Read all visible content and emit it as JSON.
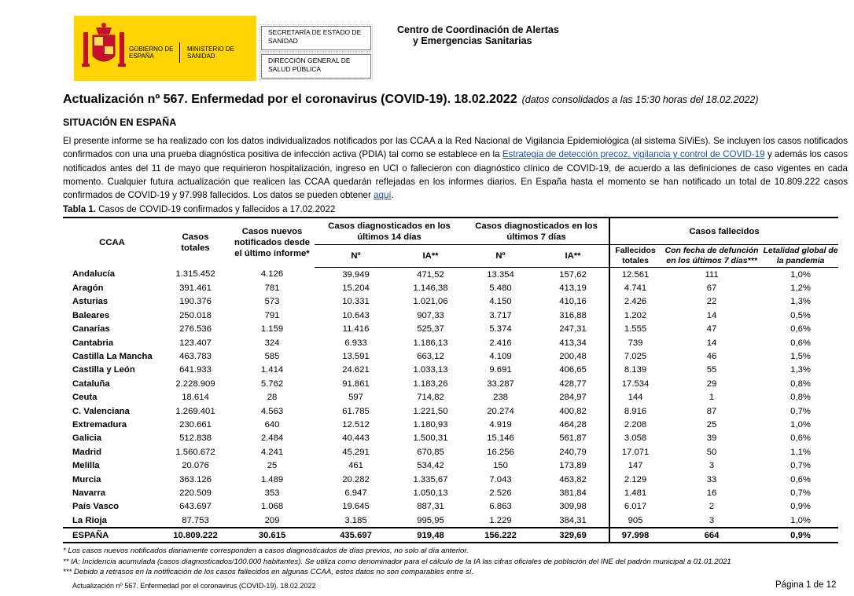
{
  "header": {
    "gobierno": "GOBIERNO DE ESPAÑA",
    "ministerio": "MINISTERIO DE SANIDAD",
    "box1": "SECRETARÍA DE ESTADO DE SANIDAD",
    "box2": "DIRECCIÓN GENERAL DE SALUD PÚBLICA",
    "center": [
      "Centro de Coordinación de Alertas",
      "y Emergencias Sanitarias"
    ]
  },
  "title": "Actualización nº 567. Enfermedad por el coronavirus (COVID-19). 18.02.2022",
  "subtitle": "(datos consolidados a las 15:30 horas del 18.02.2022)",
  "section": "SITUACIÓN EN ESPAÑA",
  "paragraph": {
    "text1": "El presente informe se ha realizado con los datos individualizados notificados por las CCAA a la Red Nacional de Vigilancia Epidemiológica (al sistema SiViEs). Se incluyen los casos notificados confirmados con una una prueba diagnóstica positiva de infección activa (PDIA) tal como se establece en la ",
    "link1": "Estrategia de detección precoz, vigilancia y control de COVID-19",
    "text2": " y además los casos notificados antes del 11 de mayo que requirieron hospitalización, ingreso en UCI o fallecieron con diagnóstico clínico de COVID-19, de acuerdo a las definiciones de caso vigentes en cada momento. Cualquier futura actualización que realicen las CCAA quedarán reflejadas en los informes diarios. En España hasta el momento se han notificado un total de 10.809.222 casos confirmados de COVID-19 y 97.998 fallecidos. Los datos se pueden obtener ",
    "link2": "aquí",
    "text3": "."
  },
  "table": {
    "caption_label": "Tabla 1.",
    "caption": " Casos de COVID-19 confirmados y fallecidos a 17.02.2022",
    "head": {
      "ccaa": "CCAA",
      "totales": "Casos totales",
      "nuevos": "Casos nuevos notificados desde el último informe*",
      "group14": "Casos diagnosticados en los últimos 14 días",
      "group7": "Casos diagnosticados en los últimos 7 días",
      "groupF": "Casos fallecidos",
      "n14": "Nº",
      "ia14": "IA**",
      "n7": "Nº",
      "ia7": "IA**",
      "fall": "Fallecidos totales",
      "fecha": "Con fecha de defunción en los últimos 7 días***",
      "letal": "Letalidad global de la pandemia"
    },
    "rows": [
      [
        "Andalucía",
        "1.315.452",
        "4.126",
        "39.949",
        "471,52",
        "13.354",
        "157,62",
        "12.561",
        "111",
        "1,0%"
      ],
      [
        "Aragón",
        "391.461",
        "781",
        "15.204",
        "1.146,38",
        "5.480",
        "413,19",
        "4.741",
        "67",
        "1,2%"
      ],
      [
        "Asturias",
        "190.376",
        "573",
        "10.331",
        "1.021,06",
        "4.150",
        "410,16",
        "2.426",
        "22",
        "1,3%"
      ],
      [
        "Baleares",
        "250.018",
        "791",
        "10.643",
        "907,33",
        "3.717",
        "316,88",
        "1.202",
        "14",
        "0,5%"
      ],
      [
        "Canarias",
        "276.536",
        "1.159",
        "11.416",
        "525,37",
        "5.374",
        "247,31",
        "1.555",
        "47",
        "0,6%"
      ],
      [
        "Cantabria",
        "123.407",
        "324",
        "6.933",
        "1.186,13",
        "2.416",
        "413,34",
        "739",
        "14",
        "0,6%"
      ],
      [
        "Castilla La Mancha",
        "463.783",
        "585",
        "13.591",
        "663,12",
        "4.109",
        "200,48",
        "7.025",
        "46",
        "1,5%"
      ],
      [
        "Castilla y León",
        "641.933",
        "1.414",
        "24.621",
        "1.033,13",
        "9.691",
        "406,65",
        "8.139",
        "55",
        "1,3%"
      ],
      [
        "Cataluña",
        "2.228.909",
        "5.762",
        "91.861",
        "1.183,26",
        "33.287",
        "428,77",
        "17.534",
        "29",
        "0,8%"
      ],
      [
        "Ceuta",
        "18.614",
        "28",
        "597",
        "714,82",
        "238",
        "284,97",
        "144",
        "1",
        "0,8%"
      ],
      [
        "C. Valenciana",
        "1.269.401",
        "4.563",
        "61.785",
        "1.221,50",
        "20.274",
        "400,82",
        "8.916",
        "87",
        "0,7%"
      ],
      [
        "Extremadura",
        "230.661",
        "640",
        "12.512",
        "1.180,93",
        "4.919",
        "464,28",
        "2.208",
        "25",
        "1,0%"
      ],
      [
        "Galicia",
        "512.838",
        "2.484",
        "40.443",
        "1.500,31",
        "15.146",
        "561,87",
        "3.058",
        "39",
        "0,6%"
      ],
      [
        "Madrid",
        "1.560.672",
        "4.241",
        "45.291",
        "670,85",
        "16.256",
        "240,79",
        "17.071",
        "50",
        "1,1%"
      ],
      [
        "Melilla",
        "20.076",
        "25",
        "461",
        "534,42",
        "150",
        "173,89",
        "147",
        "3",
        "0,7%"
      ],
      [
        "Murcia",
        "363.126",
        "1.489",
        "20.282",
        "1.335,67",
        "7.043",
        "463,82",
        "2.129",
        "33",
        "0,6%"
      ],
      [
        "Navarra",
        "220.509",
        "353",
        "6.947",
        "1.050,13",
        "2.526",
        "381,84",
        "1.481",
        "16",
        "0,7%"
      ],
      [
        "País Vasco",
        "643.697",
        "1.068",
        "19.645",
        "887,31",
        "6.863",
        "309,98",
        "6.017",
        "2",
        "0,9%"
      ],
      [
        "La Rioja",
        "87.753",
        "209",
        "3.185",
        "995,95",
        "1.229",
        "384,31",
        "905",
        "3",
        "1,0%"
      ]
    ],
    "total": [
      "ESPAÑA",
      "10.809.222",
      "30.615",
      "435.697",
      "919,48",
      "156.222",
      "329,69",
      "97.998",
      "664",
      "0,9%"
    ]
  },
  "footnotes": [
    "* Los casos nuevos notificados diariamente corresponden a casos diagnosticados de días previos, no solo al día anterior.",
    "** IA: Incidencia acumulada (casos diagnosticados/100.000 habitantes). Se utiliza como denominador para el cálculo de la IA las cifras oficiales de población del INE del padrón municipal a 01.01.2021",
    "*** Debido a retrasos en la notificación de los casos fallecidos en algunas CCAA, estos datos no son comparables entre sí."
  ],
  "footer": {
    "left": "Actualización nº 567. Enfermedad por el coronavirus (COVID-19). 18.02.2022",
    "right": "Página 1 de 12"
  }
}
